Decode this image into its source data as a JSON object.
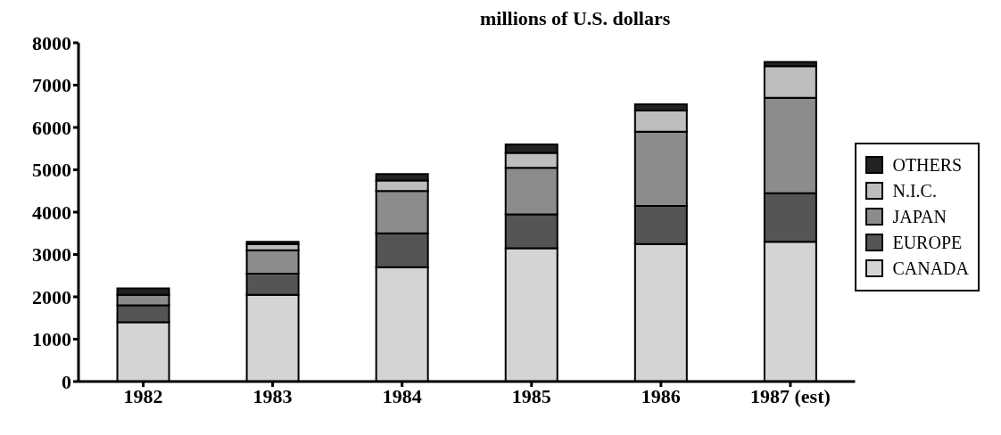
{
  "chart_data": {
    "type": "bar",
    "title": "millions of U.S. dollars",
    "stacked": true,
    "categories": [
      "1982",
      "1983",
      "1984",
      "1985",
      "1986",
      "1987 (est)"
    ],
    "series": [
      {
        "name": "CANADA",
        "color": "#d4d4d4",
        "values": [
          1400,
          2050,
          2700,
          3150,
          3250,
          3300
        ]
      },
      {
        "name": "EUROPE",
        "color": "#555555",
        "values": [
          400,
          500,
          800,
          800,
          900,
          1150
        ]
      },
      {
        "name": "JAPAN",
        "color": "#8c8c8c",
        "values": [
          250,
          550,
          1000,
          1100,
          1750,
          2250
        ]
      },
      {
        "name": "N.I.C.",
        "color": "#bdbdbd",
        "values": [
          0,
          150,
          250,
          350,
          500,
          750
        ]
      },
      {
        "name": "OTHERS",
        "color": "#222222",
        "values": [
          150,
          50,
          150,
          200,
          150,
          100
        ]
      }
    ],
    "ylim": [
      0,
      8000
    ],
    "yticks": [
      0,
      1000,
      2000,
      3000,
      4000,
      5000,
      6000,
      7000,
      8000
    ],
    "grid": false,
    "legend": "right"
  }
}
